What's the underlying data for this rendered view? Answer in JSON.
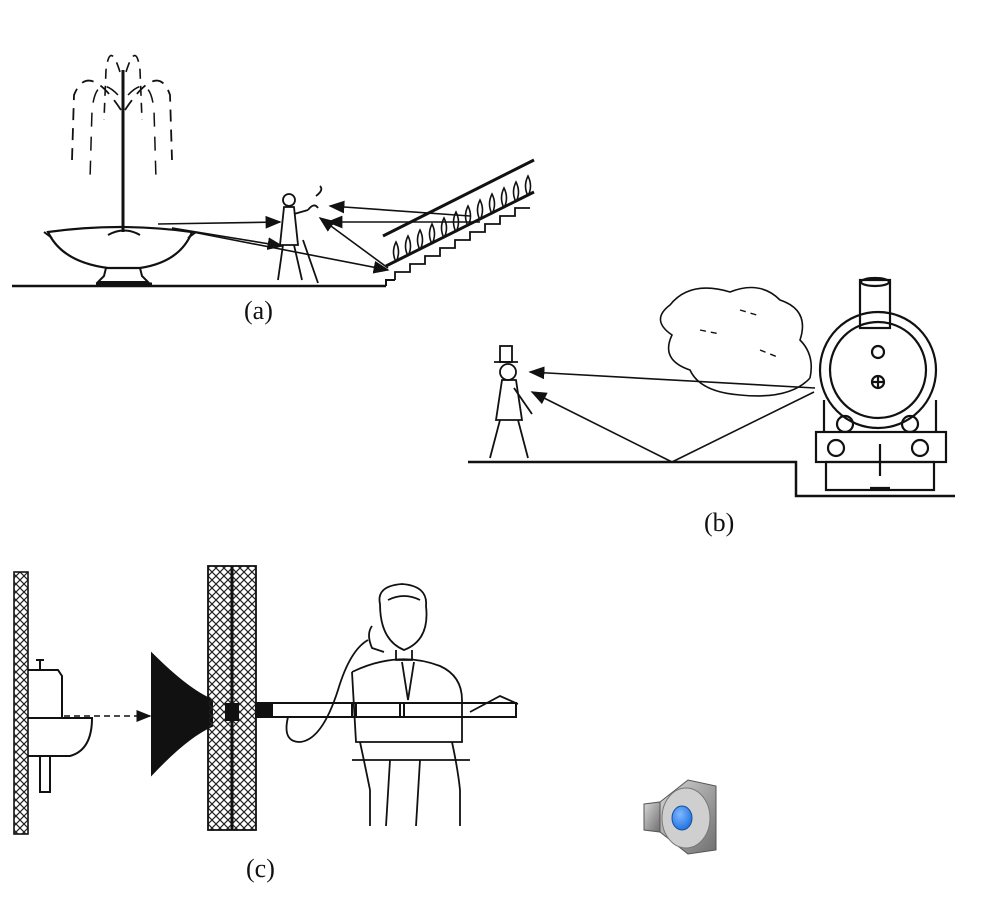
{
  "captions": {
    "a": "(a)",
    "b": "(b)",
    "c": "(c)"
  },
  "icons": {
    "audio": "speaker-icon"
  },
  "colors": {
    "ink": "#111111",
    "speaker_body": "#9a9a9a",
    "speaker_cone": "#cfcfcf",
    "speaker_center": "#1e6fe0"
  }
}
